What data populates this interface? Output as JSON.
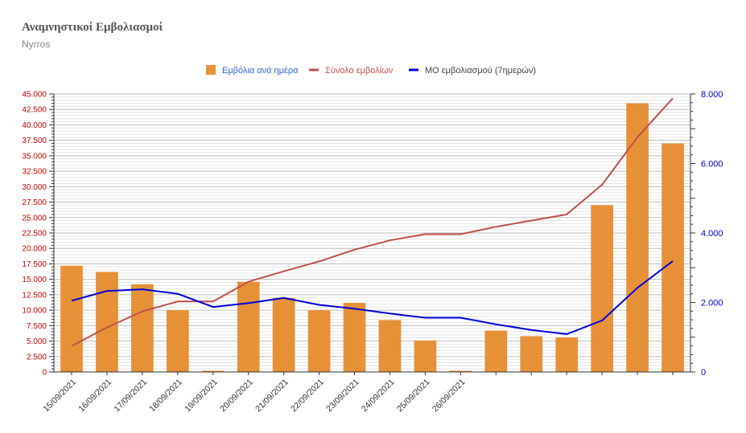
{
  "header": {
    "title": "Αναμνηστικοί Εμβολιασμοί",
    "subtitle": "Nyrros"
  },
  "colors": {
    "bars": "#E69138",
    "total_line": "#C0504D",
    "avg_line": "#0000DD",
    "left_axis": "#CC0000",
    "right_axis": "#0000CC",
    "legend_bar_text": "#3366CC",
    "legend_total_text": "#C0504D",
    "legend_avg_text": "#444444"
  },
  "chart_data": {
    "type": "bar",
    "categories": [
      "15/09/2021",
      "16/09/2021",
      "17/09/2021",
      "18/09/2021",
      "19/09/2021",
      "20/09/2021",
      "21/09/2021",
      "22/09/2021",
      "23/09/2021",
      "24/09/2021",
      "25/09/2021",
      "26/09/2021",
      "",
      "",
      "",
      "",
      "",
      ""
    ],
    "series": [
      {
        "name": "Εμβόλια ανά ημέρα",
        "type": "bar",
        "axis": "left",
        "values": [
          17200,
          16200,
          14200,
          10000,
          200,
          14600,
          12000,
          10000,
          11200,
          8400,
          5100,
          200,
          6700,
          5800,
          5600,
          27000,
          43500,
          37000
        ]
      },
      {
        "name": "Σύνολο εμβολίων",
        "type": "line",
        "axis": "left",
        "values": [
          4200,
          7200,
          9800,
          11400,
          11400,
          14600,
          16300,
          17900,
          19800,
          21300,
          22300,
          22300,
          23500,
          24500,
          25500,
          30300,
          38000,
          44300
        ]
      },
      {
        "name": "ΜΟ εμβολιασμού (7ημερών)",
        "type": "line",
        "axis": "right",
        "values": [
          2050,
          2330,
          2380,
          2250,
          1870,
          1980,
          2130,
          1930,
          1820,
          1680,
          1560,
          1560,
          1370,
          1210,
          1090,
          1480,
          2420,
          3190
        ]
      }
    ],
    "left_axis": {
      "min": 0,
      "max": 45000,
      "ticks": [
        "0",
        "2.500",
        "5.000",
        "7.500",
        "10.000",
        "12.500",
        "15.000",
        "17.500",
        "20.000",
        "22.500",
        "25.000",
        "27.500",
        "30.000",
        "32.500",
        "35.000",
        "37.500",
        "40.000",
        "42.500",
        "45.000"
      ]
    },
    "right_axis": {
      "min": 0,
      "max": 8000,
      "ticks": [
        "0",
        "2.000",
        "4.000",
        "6.000",
        "8.000"
      ]
    },
    "grid": true,
    "legend_position": "top-center"
  }
}
